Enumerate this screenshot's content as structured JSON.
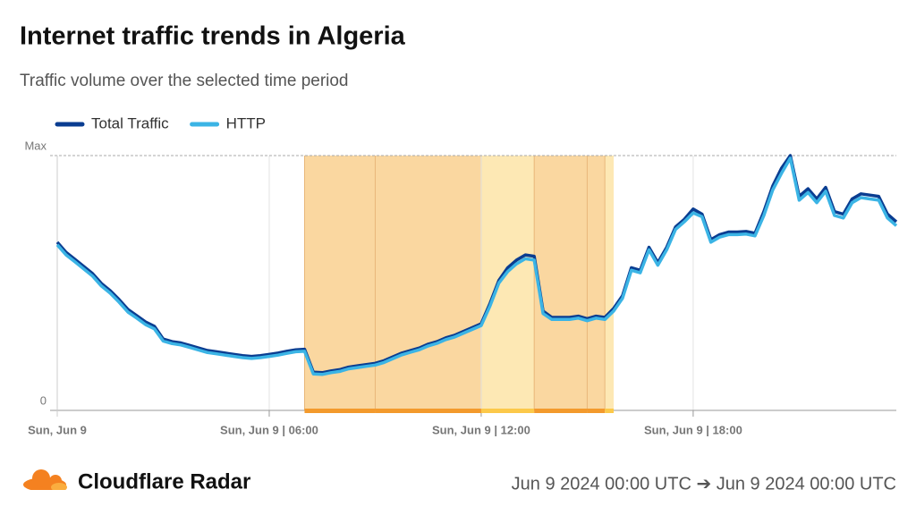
{
  "chart_data": {
    "type": "line",
    "title": "Internet traffic trends in Algeria",
    "subtitle": "Traffic volume over the selected time period",
    "x": [
      0,
      0.25,
      0.5,
      0.75,
      1,
      1.25,
      1.5,
      1.75,
      2,
      2.25,
      2.5,
      2.75,
      3,
      3.25,
      3.5,
      3.75,
      4,
      4.25,
      4.5,
      4.75,
      5,
      5.25,
      5.5,
      5.75,
      6,
      6.25,
      6.5,
      6.75,
      7,
      7.25,
      7.5,
      7.75,
      8,
      8.25,
      8.5,
      8.75,
      9,
      9.25,
      9.5,
      9.75,
      10,
      10.25,
      10.5,
      10.75,
      11,
      11.25,
      11.5,
      11.75,
      12,
      12.25,
      12.5,
      12.75,
      13,
      13.25,
      13.5,
      13.75,
      14,
      14.25,
      14.5,
      14.75,
      15,
      15.25,
      15.5,
      15.75,
      16,
      16.25,
      16.5,
      16.75,
      17,
      17.25,
      17.5,
      17.75,
      18,
      18.25,
      18.5,
      18.75,
      19,
      19.25,
      19.5,
      19.75,
      20,
      20.25,
      20.5,
      20.75,
      21,
      21.25,
      21.5,
      21.75,
      22,
      22.25,
      22.5,
      22.75,
      23,
      23.25,
      23.5,
      23.75
    ],
    "series": [
      {
        "name": "Total Traffic",
        "color": "#0a3d91",
        "values": [
          0.66,
          0.62,
          0.593,
          0.565,
          0.537,
          0.498,
          0.47,
          0.435,
          0.396,
          0.372,
          0.347,
          0.33,
          0.28,
          0.27,
          0.265,
          0.255,
          0.245,
          0.235,
          0.23,
          0.225,
          0.22,
          0.215,
          0.212,
          0.215,
          0.22,
          0.225,
          0.232,
          0.238,
          0.24,
          0.15,
          0.148,
          0.155,
          0.16,
          0.17,
          0.175,
          0.18,
          0.185,
          0.195,
          0.21,
          0.225,
          0.235,
          0.245,
          0.26,
          0.27,
          0.285,
          0.295,
          0.31,
          0.325,
          0.34,
          0.42,
          0.51,
          0.56,
          0.59,
          0.61,
          0.605,
          0.39,
          0.365,
          0.365,
          0.365,
          0.37,
          0.36,
          0.37,
          0.365,
          0.4,
          0.45,
          0.56,
          0.55,
          0.64,
          0.58,
          0.64,
          0.72,
          0.75,
          0.79,
          0.77,
          0.67,
          0.69,
          0.7,
          0.7,
          0.702,
          0.695,
          0.78,
          0.88,
          0.95,
          1.0,
          0.84,
          0.87,
          0.83,
          0.875,
          0.78,
          0.77,
          0.83,
          0.85,
          0.845,
          0.84,
          0.77,
          0.74
        ]
      },
      {
        "name": "HTTP",
        "color": "#3bb4e5",
        "values": [
          0.65,
          0.61,
          0.583,
          0.555,
          0.527,
          0.488,
          0.46,
          0.425,
          0.386,
          0.362,
          0.337,
          0.32,
          0.272,
          0.262,
          0.257,
          0.247,
          0.237,
          0.227,
          0.222,
          0.217,
          0.212,
          0.207,
          0.204,
          0.207,
          0.212,
          0.217,
          0.224,
          0.23,
          0.232,
          0.143,
          0.141,
          0.148,
          0.153,
          0.163,
          0.168,
          0.173,
          0.178,
          0.188,
          0.203,
          0.218,
          0.228,
          0.238,
          0.253,
          0.263,
          0.278,
          0.288,
          0.303,
          0.318,
          0.333,
          0.41,
          0.5,
          0.545,
          0.575,
          0.595,
          0.59,
          0.38,
          0.357,
          0.357,
          0.357,
          0.362,
          0.352,
          0.362,
          0.357,
          0.39,
          0.44,
          0.55,
          0.54,
          0.63,
          0.57,
          0.63,
          0.71,
          0.74,
          0.775,
          0.76,
          0.66,
          0.68,
          0.69,
          0.69,
          0.692,
          0.685,
          0.765,
          0.865,
          0.93,
          0.99,
          0.825,
          0.855,
          0.815,
          0.86,
          0.765,
          0.755,
          0.815,
          0.835,
          0.83,
          0.825,
          0.755,
          0.725
        ]
      }
    ],
    "xlim": [
      0,
      23.75
    ],
    "xticks": [
      {
        "value": 0,
        "label": "Sun, Jun 9"
      },
      {
        "value": 6,
        "label": "Sun, Jun 9 | 06:00"
      },
      {
        "value": 12,
        "label": "Sun, Jun 9 | 12:00"
      },
      {
        "value": 18,
        "label": "Sun, Jun 9 | 18:00"
      }
    ],
    "ylim": [
      0,
      1
    ],
    "yticks": [
      0,
      {
        "value": 1,
        "label": "Max"
      }
    ],
    "grid": true,
    "legend": "top-left",
    "highlights": [
      {
        "start": 7,
        "end": 9,
        "color": "#fad7a0",
        "bar_color": "#f39a2d"
      },
      {
        "start": 9,
        "end": 12,
        "color": "#fad7a0",
        "bar_color": "#f39a2d"
      },
      {
        "start": 12,
        "end": 13.5,
        "color": "#fde8b4",
        "bar_color": "#fcc94a"
      },
      {
        "start": 13.5,
        "end": 15,
        "color": "#fad7a0",
        "bar_color": "#f39a2d"
      },
      {
        "start": 15,
        "end": 15.5,
        "color": "#fad7a0",
        "bar_color": "#f39a2d"
      },
      {
        "start": 15.5,
        "end": 15.75,
        "color": "#fde8b4",
        "bar_color": "#fcc94a"
      }
    ]
  },
  "brand": "Cloudflare Radar",
  "date_range": "Jun 9 2024 00:00 UTC ➔ Jun 9 2024 00:00 UTC"
}
